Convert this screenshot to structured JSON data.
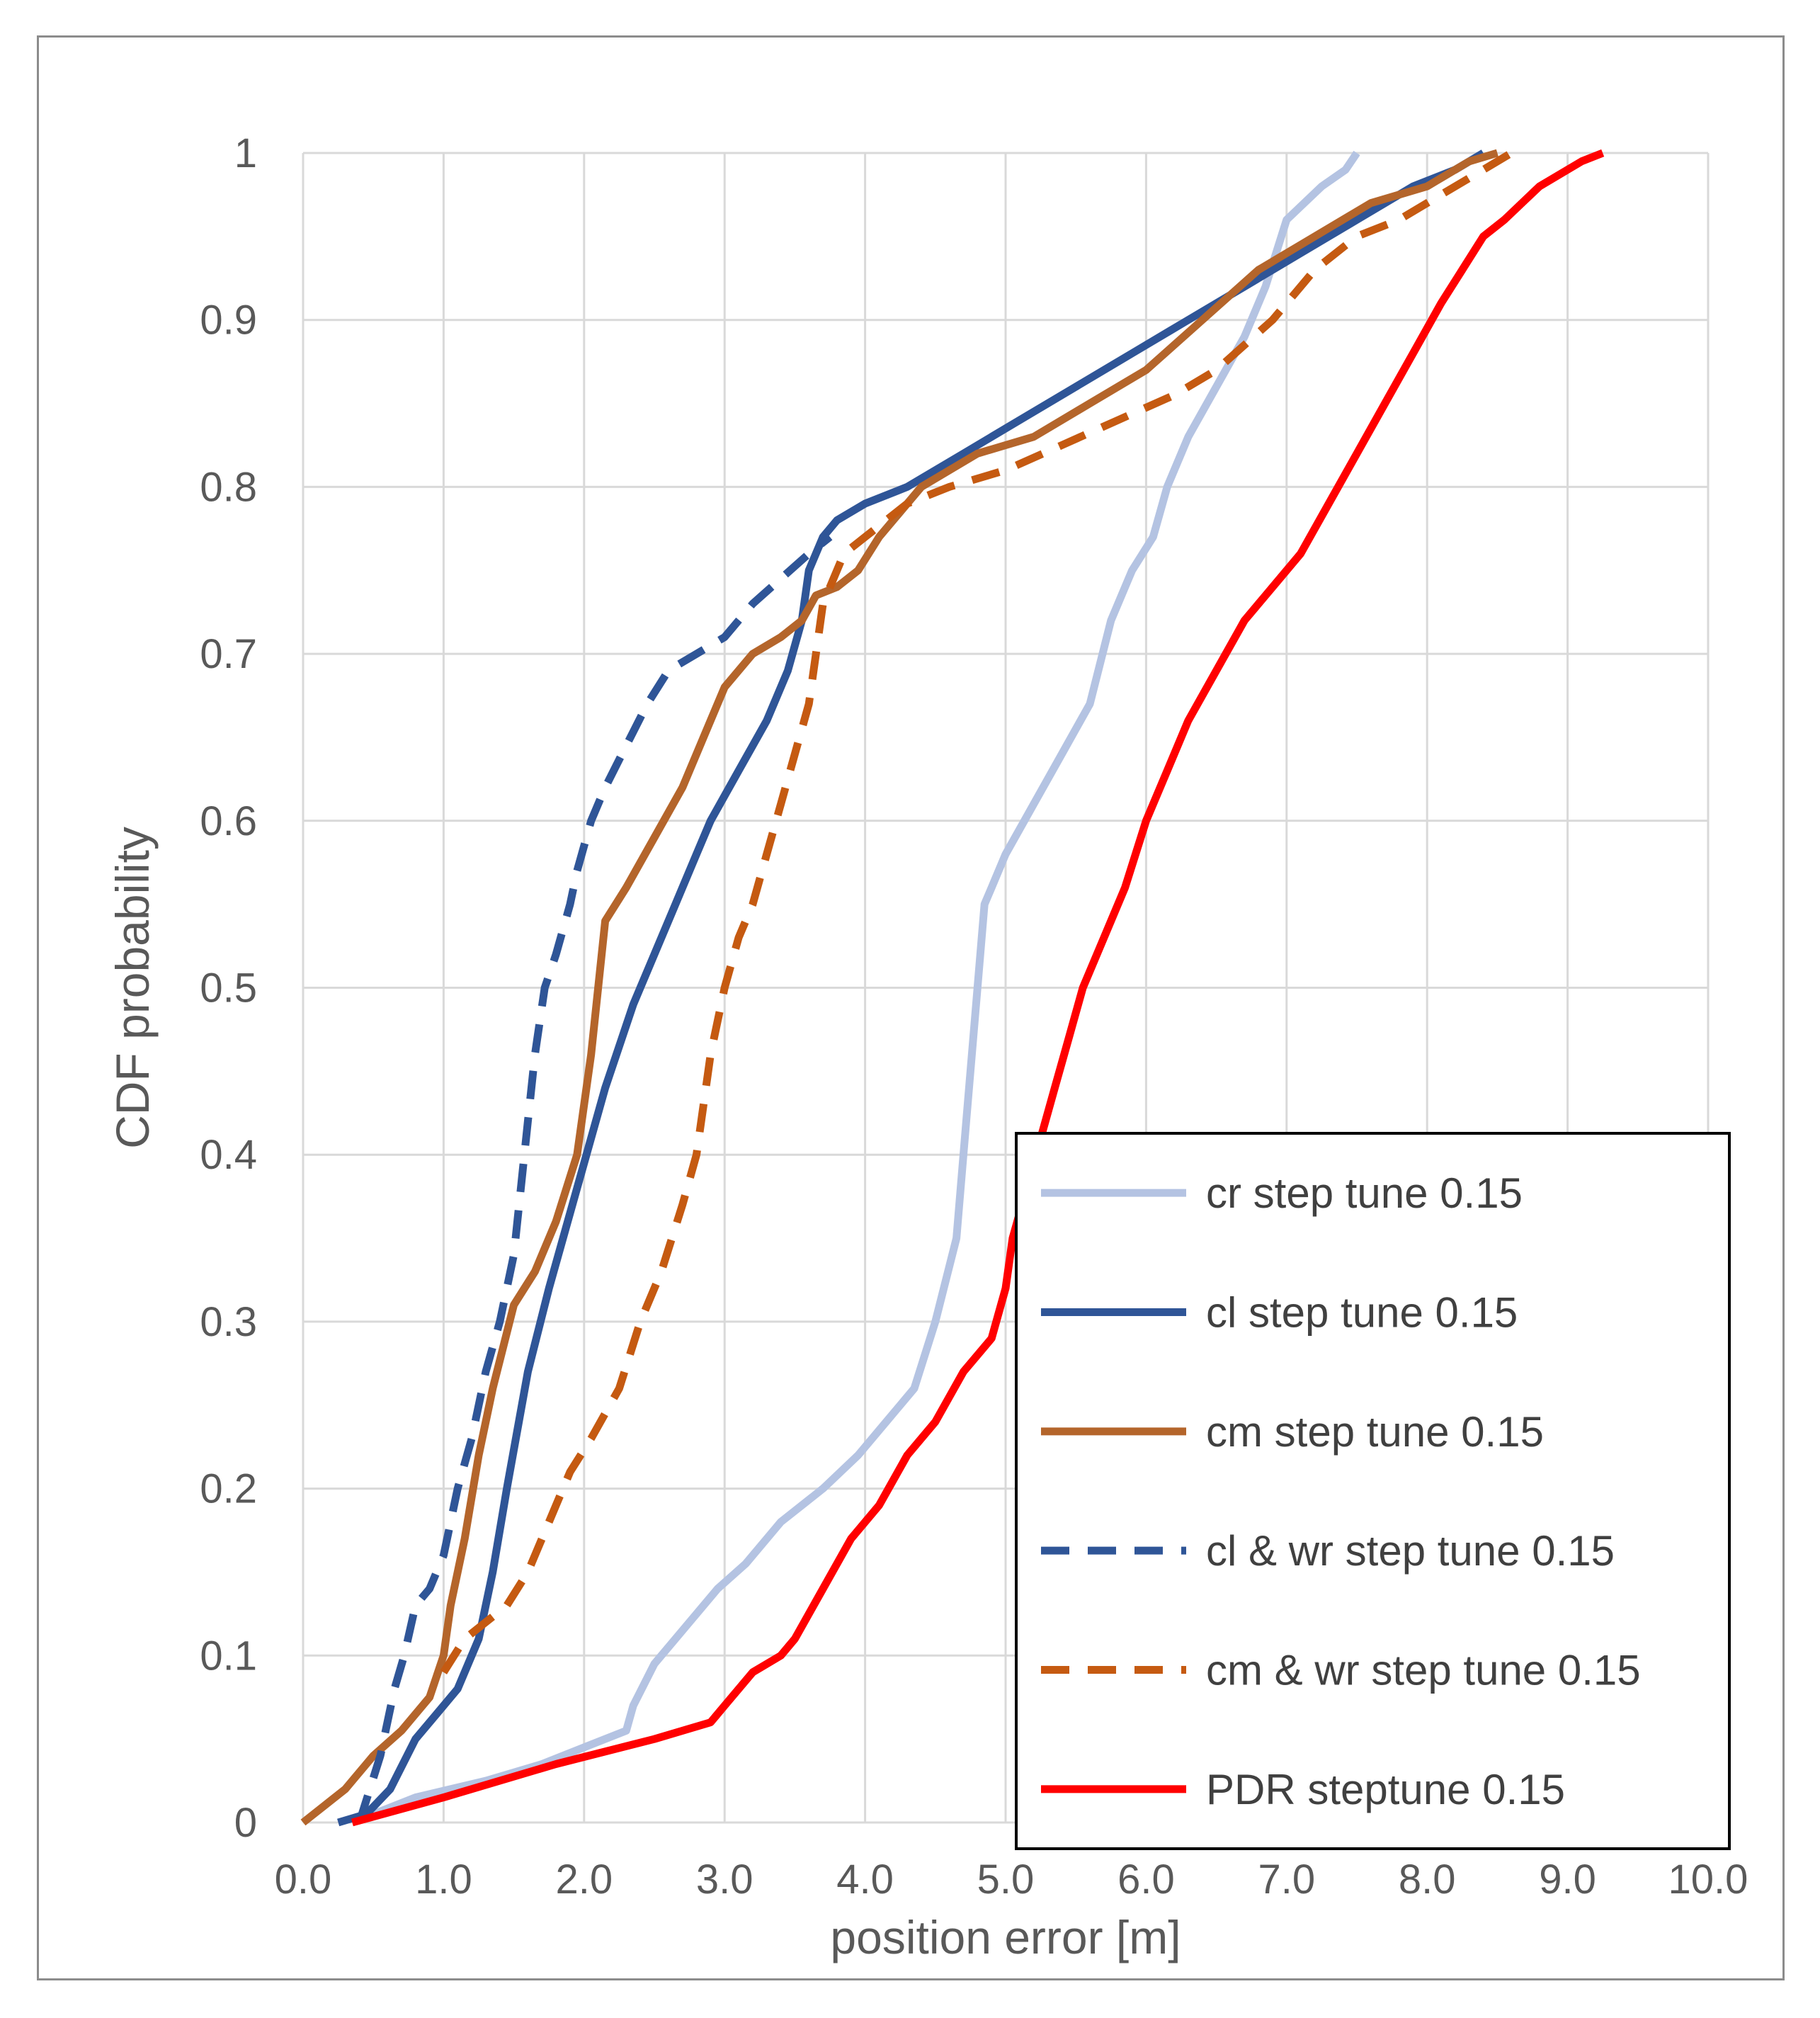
{
  "chart_data": {
    "type": "line",
    "title": "",
    "xlabel": "position error [m]",
    "ylabel": "CDF probability",
    "xlim": [
      0,
      10
    ],
    "ylim": [
      0,
      1
    ],
    "grid": true,
    "legend_position": "bottom-right",
    "x_tick_labels": [
      "0.0",
      "1.0",
      "2.0",
      "3.0",
      "4.0",
      "5.0",
      "6.0",
      "7.0",
      "8.0",
      "9.0",
      "10.0"
    ],
    "y_tick_labels": [
      "0",
      "0.1",
      "0.2",
      "0.3",
      "0.4",
      "0.5",
      "0.6",
      "0.7",
      "0.8",
      "0.9",
      "1"
    ],
    "series": [
      {
        "name": "cr step tune 0.15",
        "color": "#b4c3e2",
        "dash": "solid",
        "x": [
          0.35,
          0.8,
          1.3,
          1.7,
          2.0,
          2.3,
          2.35,
          2.5,
          2.65,
          2.8,
          2.95,
          3.15,
          3.4,
          3.7,
          3.95,
          4.15,
          4.35,
          4.5,
          4.65,
          4.72,
          4.8,
          4.85,
          4.9,
          5.0,
          5.2,
          5.4,
          5.6,
          5.75,
          5.9,
          6.05,
          6.15,
          6.3,
          6.5,
          6.7,
          6.85,
          7.0,
          7.25,
          7.42,
          7.5
        ],
        "y": [
          0.0,
          0.015,
          0.025,
          0.035,
          0.045,
          0.055,
          0.07,
          0.095,
          0.11,
          0.125,
          0.14,
          0.155,
          0.18,
          0.2,
          0.22,
          0.24,
          0.26,
          0.3,
          0.35,
          0.42,
          0.5,
          0.55,
          0.56,
          0.58,
          0.61,
          0.64,
          0.67,
          0.72,
          0.75,
          0.77,
          0.8,
          0.83,
          0.86,
          0.89,
          0.92,
          0.96,
          0.98,
          0.99,
          1.0
        ]
      },
      {
        "name": "cl step tune 0.15",
        "color": "#2f5597",
        "dash": "solid",
        "x": [
          0.25,
          0.45,
          0.62,
          0.8,
          0.95,
          1.1,
          1.25,
          1.35,
          1.45,
          1.6,
          1.75,
          1.95,
          2.15,
          2.35,
          2.5,
          2.65,
          2.8,
          2.9,
          3.1,
          3.3,
          3.45,
          3.55,
          3.6,
          3.7,
          3.8,
          4.0,
          4.3,
          4.7,
          5.1,
          5.5,
          5.9,
          6.3,
          6.7,
          7.1,
          7.5,
          7.9,
          8.2,
          8.4
        ],
        "y": [
          0.0,
          0.005,
          0.02,
          0.05,
          0.065,
          0.08,
          0.11,
          0.15,
          0.2,
          0.27,
          0.32,
          0.38,
          0.44,
          0.49,
          0.52,
          0.55,
          0.58,
          0.6,
          0.63,
          0.66,
          0.69,
          0.72,
          0.75,
          0.77,
          0.78,
          0.79,
          0.8,
          0.82,
          0.84,
          0.86,
          0.88,
          0.9,
          0.92,
          0.94,
          0.96,
          0.98,
          0.99,
          1.0
        ]
      },
      {
        "name": "cm step tune 0.15",
        "color": "#b4652b",
        "dash": "solid",
        "x": [
          0.0,
          0.15,
          0.3,
          0.5,
          0.7,
          0.9,
          1.0,
          1.05,
          1.15,
          1.25,
          1.35,
          1.5,
          1.65,
          1.8,
          1.95,
          2.05,
          2.15,
          2.3,
          2.5,
          2.7,
          2.85,
          3.0,
          3.2,
          3.4,
          3.55,
          3.65,
          3.8,
          3.95,
          4.1,
          4.4,
          4.8,
          5.2,
          5.6,
          6.0,
          6.4,
          6.8,
          7.2,
          7.6,
          8.0,
          8.3,
          8.5
        ],
        "y": [
          0.0,
          0.01,
          0.02,
          0.04,
          0.055,
          0.075,
          0.1,
          0.13,
          0.17,
          0.22,
          0.26,
          0.31,
          0.33,
          0.36,
          0.4,
          0.46,
          0.54,
          0.56,
          0.59,
          0.62,
          0.65,
          0.68,
          0.7,
          0.71,
          0.72,
          0.735,
          0.74,
          0.75,
          0.77,
          0.8,
          0.82,
          0.83,
          0.85,
          0.87,
          0.9,
          0.93,
          0.95,
          0.97,
          0.98,
          0.995,
          1.0
        ]
      },
      {
        "name": "cl & wr step tune 0.15",
        "color": "#2f5597",
        "dash": "dashed",
        "x": [
          0.4,
          0.55,
          0.65,
          0.72,
          0.8,
          0.9,
          1.0,
          1.1,
          1.2,
          1.3,
          1.4,
          1.5,
          1.55,
          1.6,
          1.65,
          1.72,
          1.8,
          1.9,
          1.95,
          2.05,
          2.15,
          2.3,
          2.45,
          2.6,
          2.8,
          3.0,
          3.2,
          3.4,
          3.6,
          3.75
        ],
        "y": [
          0.0,
          0.04,
          0.08,
          0.1,
          0.13,
          0.14,
          0.16,
          0.2,
          0.23,
          0.27,
          0.3,
          0.34,
          0.38,
          0.42,
          0.46,
          0.5,
          0.52,
          0.55,
          0.57,
          0.6,
          0.62,
          0.645,
          0.67,
          0.69,
          0.7,
          0.71,
          0.73,
          0.745,
          0.76,
          0.77
        ]
      },
      {
        "name": "cm & wr step tune 0.15",
        "color": "#c55a11",
        "dash": "dashed",
        "x": [
          1.0,
          1.15,
          1.3,
          1.45,
          1.6,
          1.75,
          1.9,
          2.05,
          2.25,
          2.4,
          2.55,
          2.7,
          2.8,
          2.9,
          3.0,
          3.1,
          3.2,
          3.3,
          3.4,
          3.5,
          3.6,
          3.65,
          3.7,
          3.85,
          4.0,
          4.3,
          4.6,
          5.0,
          5.4,
          5.8,
          6.2,
          6.5,
          6.9,
          7.2,
          7.5,
          7.8,
          8.1,
          8.4,
          8.6
        ],
        "y": [
          0.09,
          0.11,
          0.12,
          0.13,
          0.15,
          0.18,
          0.21,
          0.23,
          0.26,
          0.3,
          0.33,
          0.37,
          0.4,
          0.46,
          0.5,
          0.53,
          0.55,
          0.58,
          0.61,
          0.64,
          0.67,
          0.7,
          0.73,
          0.76,
          0.77,
          0.79,
          0.8,
          0.81,
          0.825,
          0.84,
          0.855,
          0.87,
          0.9,
          0.93,
          0.95,
          0.96,
          0.975,
          0.99,
          1.0
        ]
      },
      {
        "name": "PDR steptune 0.15",
        "color": "#ff0000",
        "dash": "solid",
        "x": [
          0.35,
          1.0,
          1.8,
          2.5,
          2.9,
          3.0,
          3.2,
          3.4,
          3.5,
          3.7,
          3.9,
          4.1,
          4.3,
          4.5,
          4.7,
          4.9,
          5.0,
          5.05,
          5.15,
          5.25,
          5.35,
          5.45,
          5.55,
          5.7,
          5.85,
          6.0,
          6.15,
          6.3,
          6.5,
          6.7,
          6.9,
          7.1,
          7.3,
          7.5,
          7.7,
          7.9,
          8.1,
          8.25,
          8.4,
          8.55,
          8.8,
          9.1,
          9.25
        ],
        "y": [
          0.0,
          0.015,
          0.035,
          0.05,
          0.06,
          0.07,
          0.09,
          0.1,
          0.11,
          0.14,
          0.17,
          0.19,
          0.22,
          0.24,
          0.27,
          0.29,
          0.32,
          0.35,
          0.38,
          0.41,
          0.44,
          0.47,
          0.5,
          0.53,
          0.56,
          0.6,
          0.63,
          0.66,
          0.69,
          0.72,
          0.74,
          0.76,
          0.79,
          0.82,
          0.85,
          0.88,
          0.91,
          0.93,
          0.95,
          0.96,
          0.98,
          0.995,
          1.0
        ]
      }
    ]
  }
}
